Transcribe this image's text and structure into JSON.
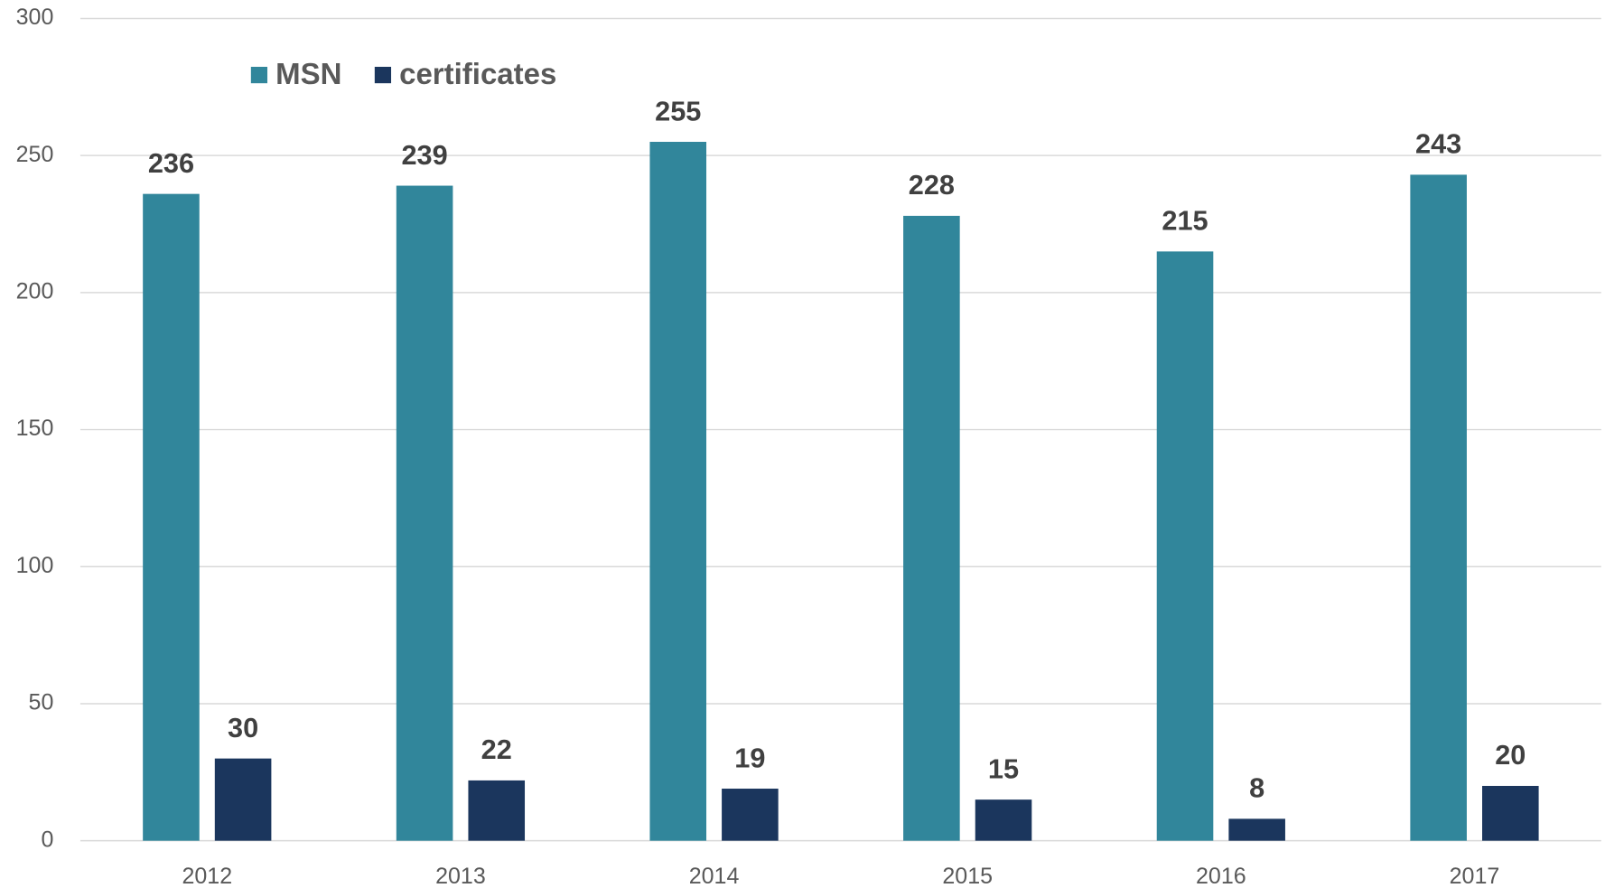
{
  "chart_data": {
    "type": "bar",
    "categories": [
      "2012",
      "2013",
      "2014",
      "2015",
      "2016",
      "2017"
    ],
    "series": [
      {
        "name": "MSN",
        "color": "#31869b",
        "values": [
          236,
          239,
          255,
          228,
          215,
          243
        ]
      },
      {
        "name": "certificates",
        "color": "#1b365d",
        "values": [
          30,
          22,
          19,
          15,
          8,
          20
        ]
      }
    ],
    "ylim": [
      0,
      300
    ],
    "yticks": [
      0,
      50,
      100,
      150,
      200,
      250,
      300
    ],
    "grid": true,
    "legend": "top-left"
  }
}
